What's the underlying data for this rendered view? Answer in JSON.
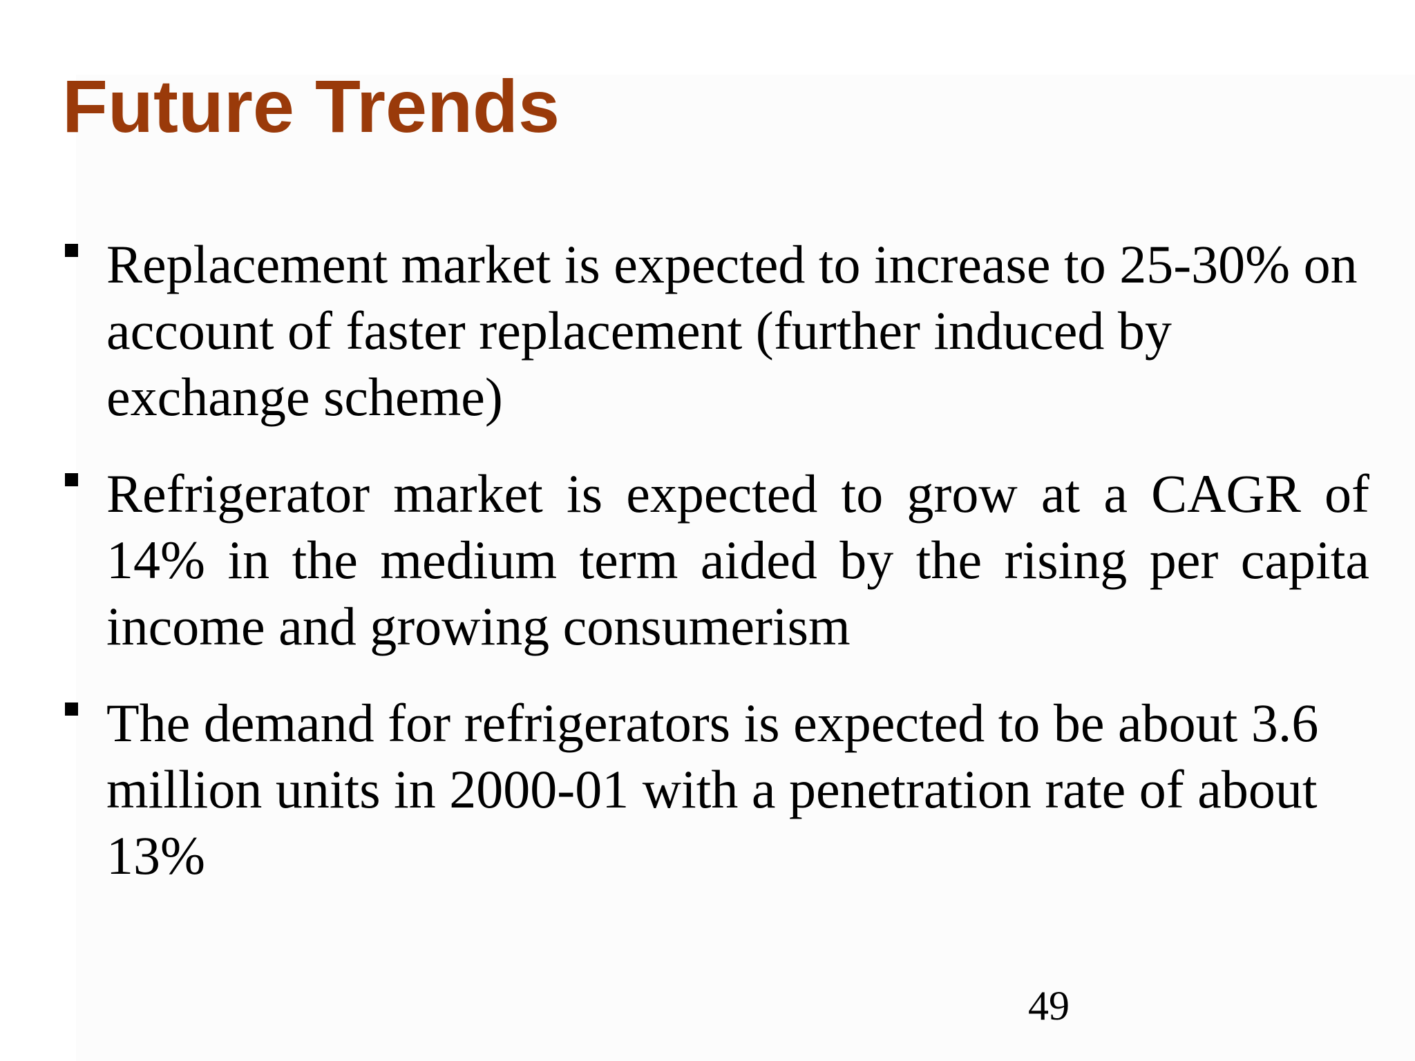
{
  "slide": {
    "title": "Future Trends",
    "bullets": [
      {
        "text": "Replacement market is expected to increase to 25-30% on account of faster replacement (further induced by exchange scheme)"
      },
      {
        "text": "Refrigerator market is expected to grow at a CAGR of 14% in the medium term aided by the rising per capita income and growing consumerism"
      },
      {
        "text": "The demand for refrigerators is expected to be about 3.6 million units in 2000-01 with a penetration rate of about 13%"
      }
    ],
    "page_number": "49",
    "colors": {
      "title": "#9a3a0a",
      "body_text": "#000000",
      "background": "#ffffff"
    }
  }
}
